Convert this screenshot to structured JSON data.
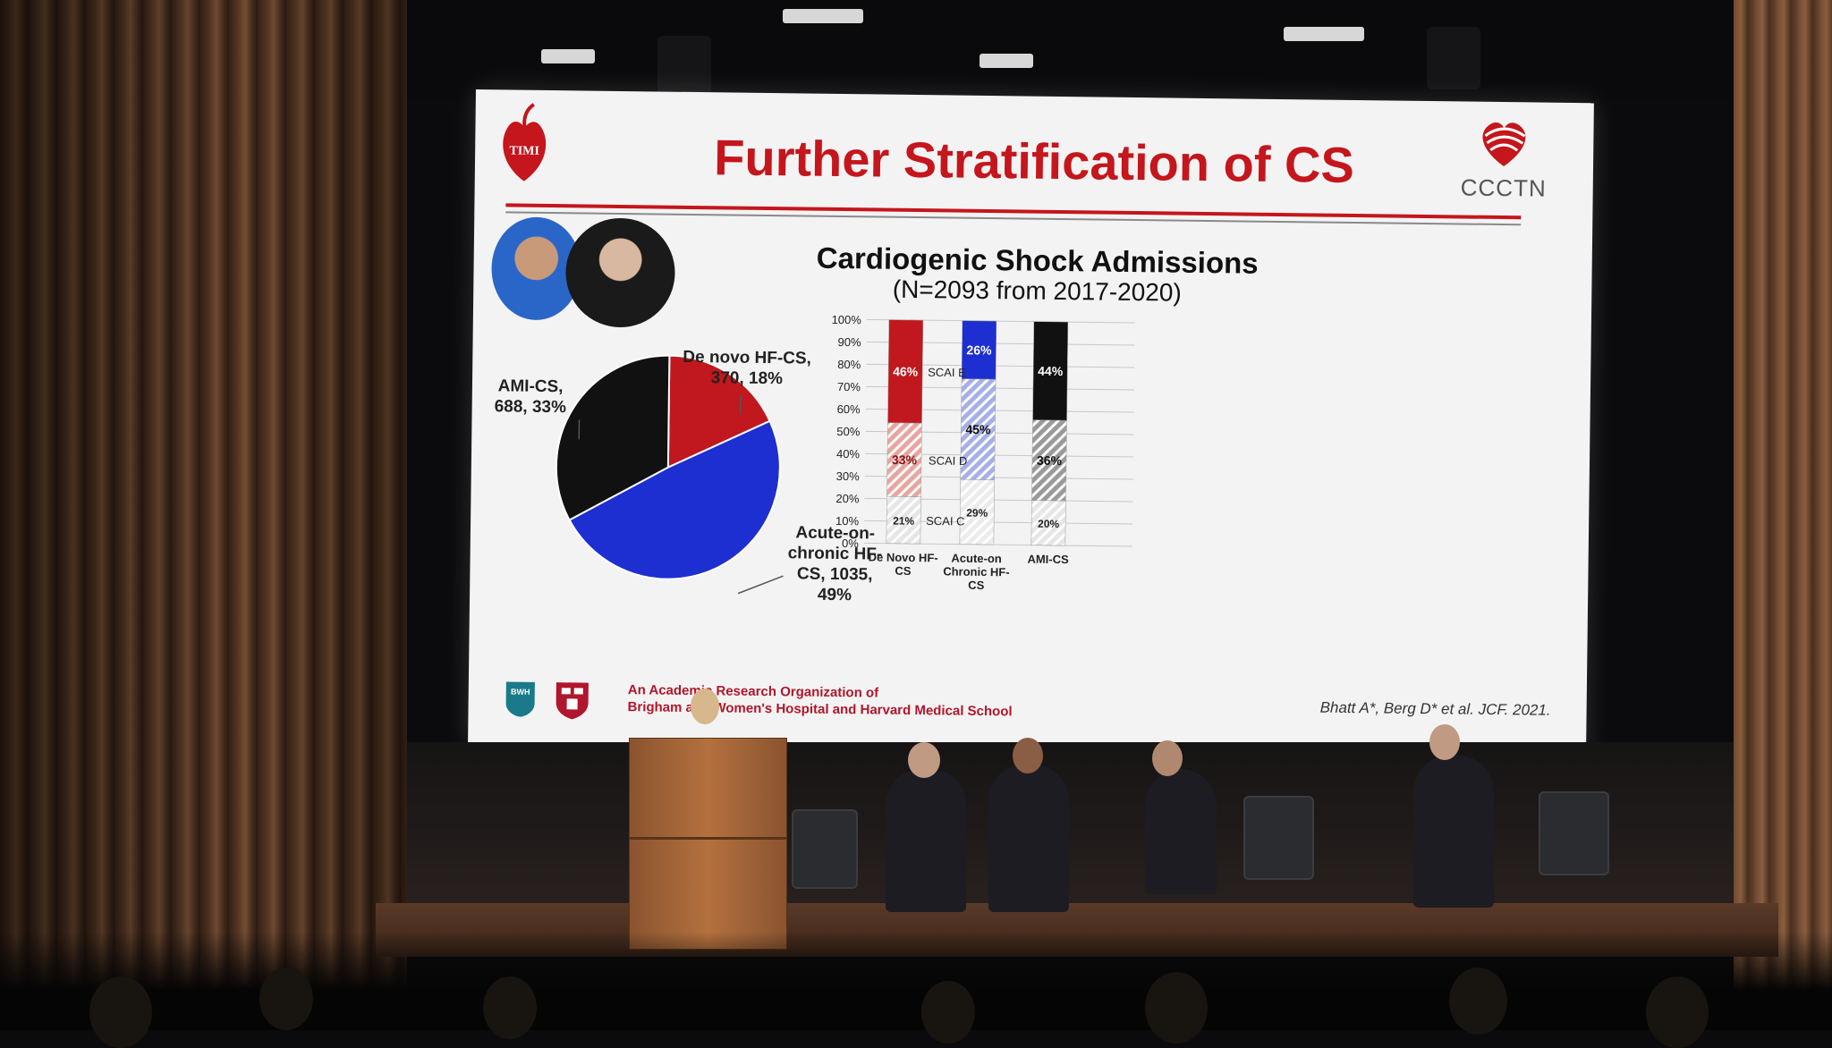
{
  "slide": {
    "title": "Further Stratification of CS",
    "timi_logo_text": "TIMI",
    "ccctn_logo_text": "CCCTN",
    "chart_title": "Cardiogenic Shock Admissions",
    "chart_subtitle": "(N=2093 from 2017-2020)",
    "footer_org_line1": "An Academic Research Organization of",
    "footer_org_line2": "Brigham and Women's Hospital and Harvard Medical School",
    "citation": "Bhatt A*, Berg D* et al. JCF. 2021.",
    "bwh_logo_text": "BWH"
  },
  "chart_data": [
    {
      "type": "pie",
      "slices": [
        {
          "name": "De novo HF-CS",
          "count": 370,
          "percent": 18,
          "color": "#c0181e"
        },
        {
          "name": "Acute-on-chronic HF-CS",
          "count": 1035,
          "percent": 49,
          "color": "#1d2fd0"
        },
        {
          "name": "AMI-CS",
          "count": 688,
          "percent": 33,
          "color": "#111111"
        }
      ],
      "labels": [
        {
          "line1": "De novo HF-CS,",
          "line2": "370, 18%"
        },
        {
          "line1": "Acute-on-",
          "line2": "chronic HF-",
          "line3": "CS, 1035,",
          "line4": "49%"
        },
        {
          "line1": "AMI-CS,",
          "line2": "688, 33%"
        }
      ]
    },
    {
      "type": "bar",
      "stacked": true,
      "categories": [
        {
          "line1": "De Novo HF-",
          "line2": "CS"
        },
        {
          "line1": "Acute-on",
          "line2": "Chronic HF-",
          "line3": "CS"
        },
        {
          "line1": "AMI-CS"
        }
      ],
      "series": [
        {
          "name": "SCAI C",
          "values": [
            21,
            29,
            20
          ],
          "labels": [
            "21%",
            "29%",
            "20%"
          ]
        },
        {
          "name": "SCAI D",
          "values": [
            33,
            45,
            36
          ],
          "labels": [
            "33%",
            "45%",
            "36%"
          ]
        },
        {
          "name": "SCAI E",
          "values": [
            46,
            26,
            44
          ],
          "labels": [
            "46%",
            "26%",
            "44%"
          ]
        }
      ],
      "colors": {
        "top": [
          "#c0181e",
          "#1d2fd0",
          "#111111"
        ],
        "middle": [
          "#e8a6a0",
          "#a6b0e6",
          "#9a9a9a"
        ],
        "bottom": [
          "#e6e6e6",
          "#ececec",
          "#e6e6e6"
        ]
      },
      "ylim": [
        0,
        100
      ],
      "yticks": [
        "0%",
        "10%",
        "20%",
        "30%",
        "40%",
        "50%",
        "60%",
        "70%",
        "80%",
        "90%",
        "100%"
      ],
      "grid": true
    }
  ]
}
